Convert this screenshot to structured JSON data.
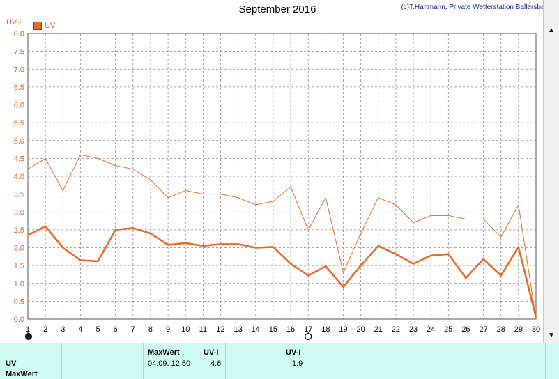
{
  "header": {
    "title": "September 2016",
    "copyright": "(c)T.Hartmann, Private Wetterstation Ballersbach"
  },
  "colors": {
    "series": "#ea6a28",
    "axis_text": "#e06020",
    "grid": "#888888",
    "footer_bg": "#d0fbf4"
  },
  "chart_data": {
    "type": "line",
    "ylabel": "UV-I",
    "ylim": [
      0,
      8.0
    ],
    "yticks": [
      "0.0",
      "0.5",
      "1.0",
      "1.5",
      "2.0",
      "2.5",
      "3.0",
      "3.5",
      "4.0",
      "4.5",
      "5.0",
      "5.5",
      "6.0",
      "6.5",
      "7.0",
      "7.5",
      "8.0"
    ],
    "xlim": [
      1,
      30
    ],
    "x": [
      1,
      2,
      3,
      4,
      5,
      6,
      7,
      8,
      9,
      10,
      11,
      12,
      13,
      14,
      15,
      16,
      17,
      18,
      19,
      20,
      21,
      22,
      23,
      24,
      25,
      26,
      27,
      28,
      29,
      30
    ],
    "grid": true,
    "legend": {
      "label": "UV",
      "placement": "top-left"
    },
    "series": [
      {
        "name": "UV",
        "style": "thin",
        "values": [
          4.2,
          4.5,
          3.6,
          4.6,
          4.5,
          4.3,
          4.2,
          3.9,
          3.4,
          3.6,
          3.5,
          3.5,
          3.4,
          3.2,
          3.3,
          3.7,
          2.5,
          3.4,
          1.3,
          2.4,
          3.4,
          3.2,
          2.7,
          2.9,
          2.9,
          2.8,
          2.8,
          2.3,
          3.2,
          0.0
        ]
      },
      {
        "name": "UV",
        "style": "thick",
        "values": [
          2.35,
          2.6,
          2.0,
          1.65,
          1.62,
          2.5,
          2.55,
          2.4,
          2.08,
          2.13,
          2.05,
          2.1,
          2.1,
          2.0,
          2.02,
          1.55,
          1.22,
          1.48,
          0.9,
          1.5,
          2.05,
          1.82,
          1.55,
          1.78,
          1.82,
          1.15,
          1.68,
          1.22,
          2.02,
          0.05
        ]
      }
    ],
    "markers": [
      {
        "day": 1,
        "type": "filled-circle"
      },
      {
        "day": 17,
        "type": "open-circle"
      }
    ]
  },
  "footer": {
    "row1_label": "UV",
    "row2_label": "MaxWert",
    "maxwert_header": "MaxWert",
    "uvi_header": "UV-I",
    "uvi_header2": "UV-I",
    "max_datetime": "04.09.  12:50",
    "max_value": "4.6",
    "value2": "1.9"
  },
  "scrollbar": {
    "up_icon": "triangle-up",
    "down_icon": "triangle-down"
  }
}
